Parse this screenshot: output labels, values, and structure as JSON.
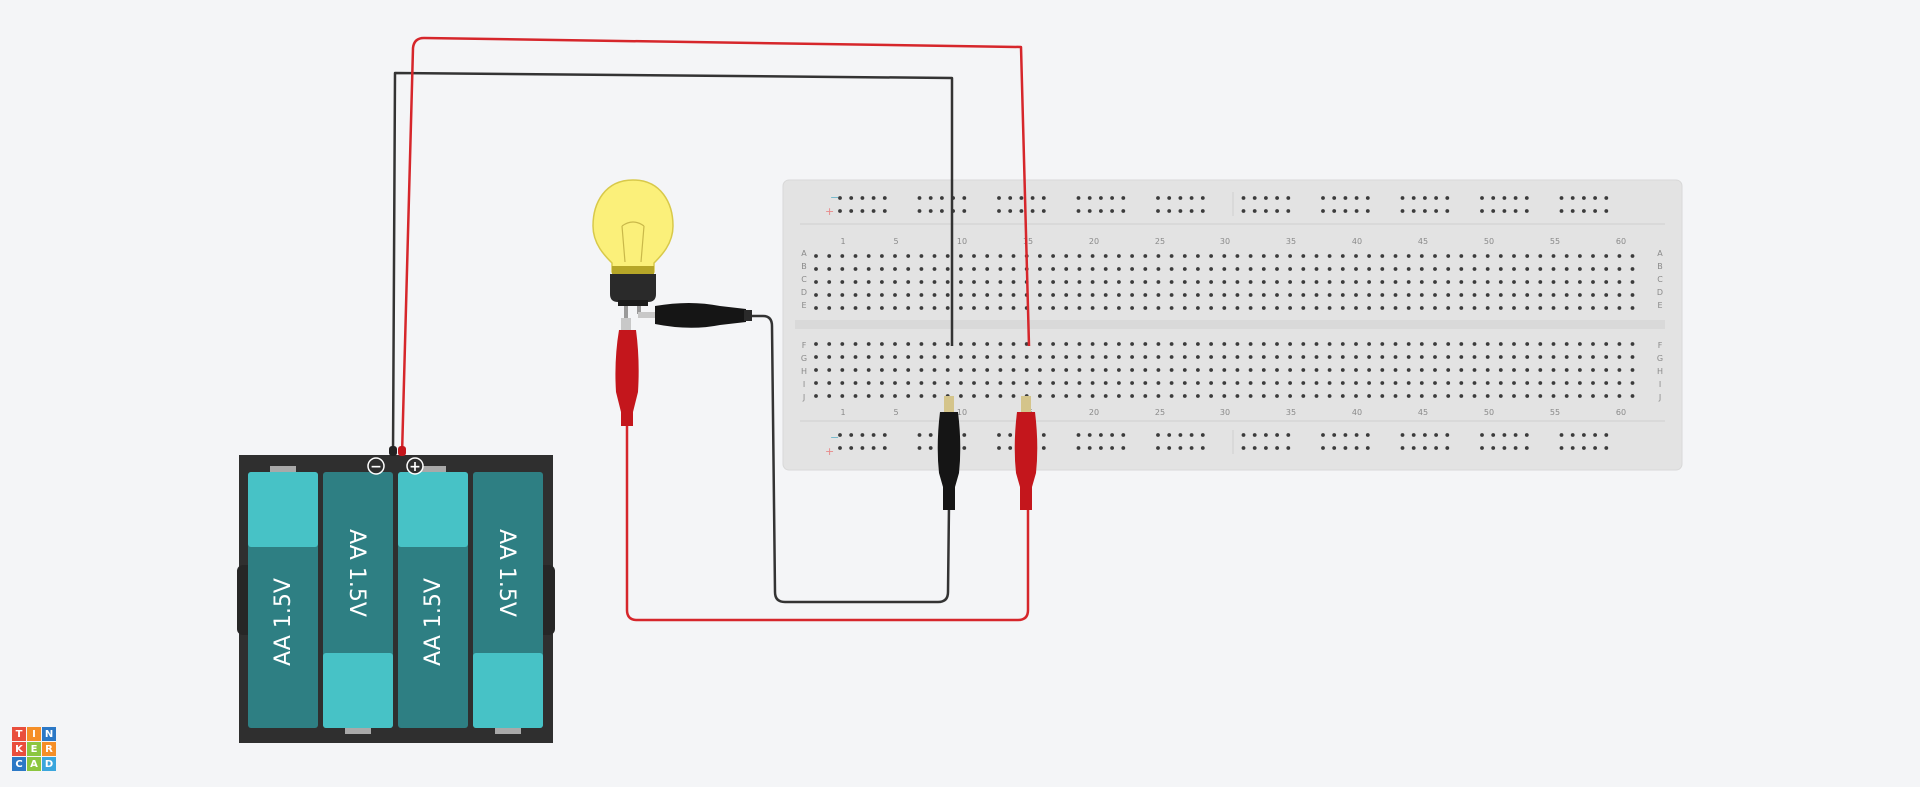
{
  "app": "Tinkercad Circuits",
  "logo_letters": [
    "T",
    "I",
    "N",
    "K",
    "E",
    "R",
    "C",
    "A",
    "D"
  ],
  "logo_colors": [
    "#e94e3c",
    "#f58f27",
    "#2b78c6",
    "#e94e3c",
    "#8cc63f",
    "#f58f27",
    "#2b78c6",
    "#8cc63f",
    "#3aa6dd"
  ],
  "battery": {
    "cells": [
      "AA 1.5V",
      "AA 1.5V",
      "AA 1.5V",
      "AA 1.5V"
    ],
    "minus_symbol": "−",
    "plus_symbol": "+"
  },
  "breadboard": {
    "column_numbers": [
      "1",
      "5",
      "10",
      "15",
      "20",
      "25",
      "30",
      "35",
      "40",
      "45",
      "50",
      "55",
      "60"
    ],
    "row_letters_top": [
      "A",
      "B",
      "C",
      "D",
      "E"
    ],
    "row_letters_bottom": [
      "F",
      "G",
      "H",
      "I",
      "J"
    ],
    "rail_minus": "−",
    "rail_plus": "+",
    "columns": 63
  },
  "colors": {
    "background": "#f4f5f7",
    "wire_red": "#d6262b",
    "wire_black": "#333333",
    "breadboard": "#e3e3e3",
    "battery_case": "#2f2f2f",
    "cell_dark": "#2e7f83",
    "cell_light": "#47c2c6",
    "bulb_glass": "#fbf07a"
  }
}
